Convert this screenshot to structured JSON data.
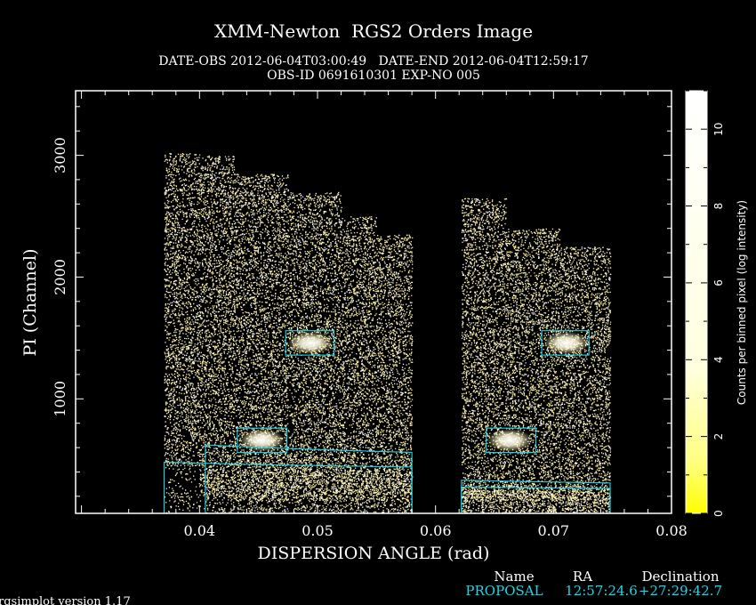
{
  "chart_data": {
    "type": "heatmap",
    "title": "XMM-Newton  RGS2 Orders Image",
    "subtitle_line1": "DATE-OBS 2012-06-04T03:00:49   DATE-END 2012-06-04T12:59:17",
    "subtitle_line2": "OBS-ID 0691610301 EXP-NO 005",
    "xlabel": "DISPERSION ANGLE (rad)",
    "ylabel": "PI (Channel)",
    "xlim": [
      0.0295,
      0.08
    ],
    "ylim": [
      60,
      3530
    ],
    "x_ticks": [
      0.04,
      0.05,
      0.06,
      0.07,
      0.08
    ],
    "x_tick_labels": [
      "0.04",
      "0.05",
      "0.06",
      "0.07",
      "0.08"
    ],
    "y_ticks": [
      1000,
      2000,
      3000
    ],
    "y_tick_labels": [
      "1000",
      "2000",
      "3000"
    ],
    "colorbar": {
      "label": "Counts per binned pixel (log intensity)",
      "range": [
        0,
        11
      ],
      "ticks": [
        0,
        2,
        4,
        6,
        8,
        10
      ],
      "tick_labels": [
        "0",
        "2",
        "4",
        "6",
        "8",
        "10"
      ],
      "color_low": "#ffff00",
      "color_high": "#ffffff"
    },
    "ccd_coverage": [
      {
        "x0": 0.037,
        "x1": 0.04,
        "y0": 450,
        "y1": 3020
      },
      {
        "x0": 0.04,
        "x1": 0.043,
        "y0": 200,
        "y1": 3000
      },
      {
        "x0": 0.043,
        "x1": 0.0475,
        "y0": 170,
        "y1": 2850
      },
      {
        "x0": 0.0475,
        "x1": 0.052,
        "y0": 170,
        "y1": 2700
      },
      {
        "x0": 0.052,
        "x1": 0.055,
        "y0": 170,
        "y1": 2500
      },
      {
        "x0": 0.055,
        "x1": 0.058,
        "y0": 170,
        "y1": 2350
      },
      {
        "x0": 0.0622,
        "x1": 0.066,
        "y0": 170,
        "y1": 2650
      },
      {
        "x0": 0.066,
        "x1": 0.0705,
        "y0": 170,
        "y1": 2400
      },
      {
        "x0": 0.0705,
        "x1": 0.0748,
        "y0": 170,
        "y1": 2250
      }
    ],
    "bright_spots": [
      {
        "x": 0.0453,
        "y": 660
      },
      {
        "x": 0.0494,
        "y": 1460
      },
      {
        "x": 0.0663,
        "y": 660
      },
      {
        "x": 0.0711,
        "y": 1460
      }
    ],
    "boxes": [
      {
        "x0": 0.0432,
        "x1": 0.0474,
        "y0": 560,
        "y1": 760
      },
      {
        "x0": 0.0473,
        "x1": 0.0514,
        "y0": 1360,
        "y1": 1560
      },
      {
        "x0": 0.0643,
        "x1": 0.0685,
        "y0": 560,
        "y1": 760
      },
      {
        "x0": 0.069,
        "x1": 0.073,
        "y0": 1360,
        "y1": 1560
      }
    ],
    "order_curves": [
      {
        "x0": 0.037,
        "x1": 0.058,
        "k": 4.1,
        "half_width": 370
      },
      {
        "x0": 0.0405,
        "x1": 0.058,
        "k": 8.2,
        "half_width": 420
      },
      {
        "x0": 0.0622,
        "x1": 0.0748,
        "k": 4.1,
        "half_width": 210
      },
      {
        "x0": 0.0622,
        "x1": 0.0748,
        "k": 8.2,
        "half_width": 200
      }
    ]
  },
  "source_table": {
    "headers": [
      "Name",
      "RA",
      "Declination"
    ],
    "row": [
      "PROPOSAL",
      "12:57:24.6",
      "+27:29:42.7"
    ],
    "row_color": "#22d3e6"
  },
  "footer": {
    "version": "rgsimplot version 1.17"
  }
}
